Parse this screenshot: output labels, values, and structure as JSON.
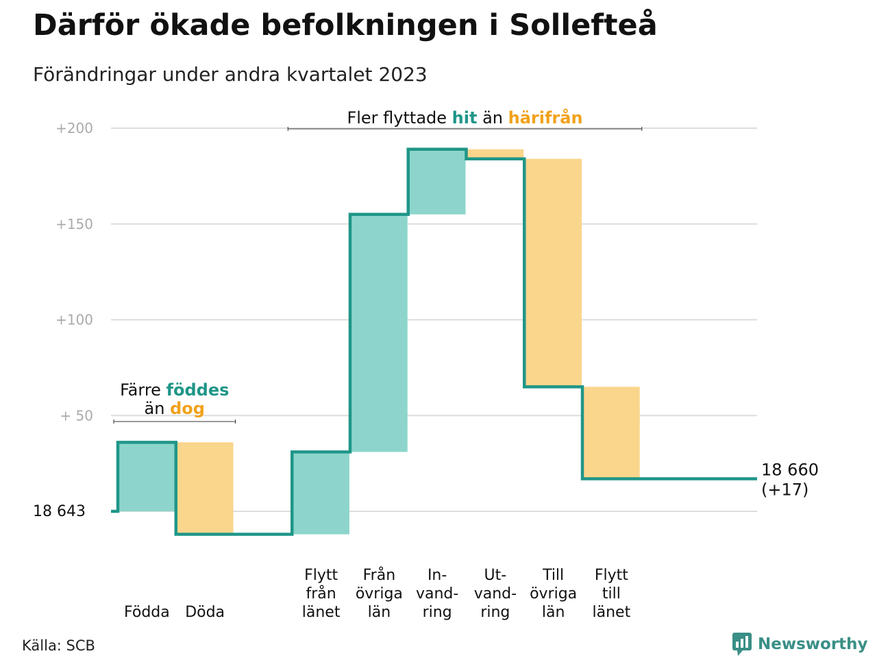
{
  "title": "Därför ökade befolkningen i Sollefteå",
  "subtitle": "Förändringar under andra kvartalet 2023",
  "source": "Källa: SCB",
  "brand": "Newsworthy",
  "colors": {
    "increase": "#8dd5cc",
    "decrease": "#fad58c",
    "line": "#1f9688",
    "accent_increase": "#1f9688",
    "accent_decrease": "#f1a21b",
    "grid": "#dddddd",
    "tick": "#aaaaaa"
  },
  "chart_data": {
    "type": "bar",
    "subtype": "waterfall",
    "baseline": 18643,
    "baseline_label": "18  643",
    "end_label": "18 660",
    "end_change_label": "(+17)",
    "ylim": [
      -12,
      200
    ],
    "yticks": [
      {
        "value": 200,
        "label": "+200"
      },
      {
        "value": 150,
        "label": "+150"
      },
      {
        "value": 100,
        "label": "+100"
      },
      {
        "value": 50,
        "label": "+  50"
      }
    ],
    "grid": true,
    "categories": [
      {
        "key": "fodda",
        "label": [
          "Födda"
        ],
        "change": 36,
        "kind": "increase",
        "slot": 0
      },
      {
        "key": "doda",
        "label": [
          "Döda"
        ],
        "change": -48,
        "kind": "decrease",
        "slot": 1
      },
      {
        "key": "flytt_fran_lanet",
        "label": [
          "Flytt",
          "från",
          "länet"
        ],
        "change": 43,
        "kind": "increase",
        "slot": 3
      },
      {
        "key": "fran_ovriga_lan",
        "label": [
          "Från",
          "övriga",
          "län"
        ],
        "change": 124,
        "kind": "increase",
        "slot": 4
      },
      {
        "key": "invandring",
        "label": [
          "In-",
          "vand-",
          "ring"
        ],
        "change": 34,
        "kind": "increase",
        "slot": 5
      },
      {
        "key": "utvandring",
        "label": [
          "Ut-",
          "vand-",
          "ring"
        ],
        "change": -5,
        "kind": "decrease",
        "slot": 6
      },
      {
        "key": "till_ovriga_lan",
        "label": [
          "Till",
          "övriga",
          "län"
        ],
        "change": -119,
        "kind": "decrease",
        "slot": 7
      },
      {
        "key": "flytt_till_lanet",
        "label": [
          "Flytt",
          "till",
          "länet"
        ],
        "change": -48,
        "kind": "decrease",
        "slot": 8
      }
    ],
    "final_value": 17,
    "annotations": [
      {
        "key": "births",
        "lines": [
          [
            {
              "text": "Färre ",
              "style": "plain"
            },
            {
              "text": "föddes",
              "style": "increase"
            }
          ],
          [
            {
              "text": "än ",
              "style": "plain"
            },
            {
              "text": "dog",
              "style": "decrease"
            }
          ]
        ],
        "bracket_slots": [
          0,
          1
        ]
      },
      {
        "key": "migration",
        "lines": [
          [
            {
              "text": "Fler flyttade ",
              "style": "plain"
            },
            {
              "text": "hit",
              "style": "increase"
            },
            {
              "text": "  än ",
              "style": "plain"
            },
            {
              "text": "härifrån",
              "style": "decrease"
            }
          ]
        ],
        "bracket_slots": [
          3,
          8
        ]
      }
    ]
  }
}
